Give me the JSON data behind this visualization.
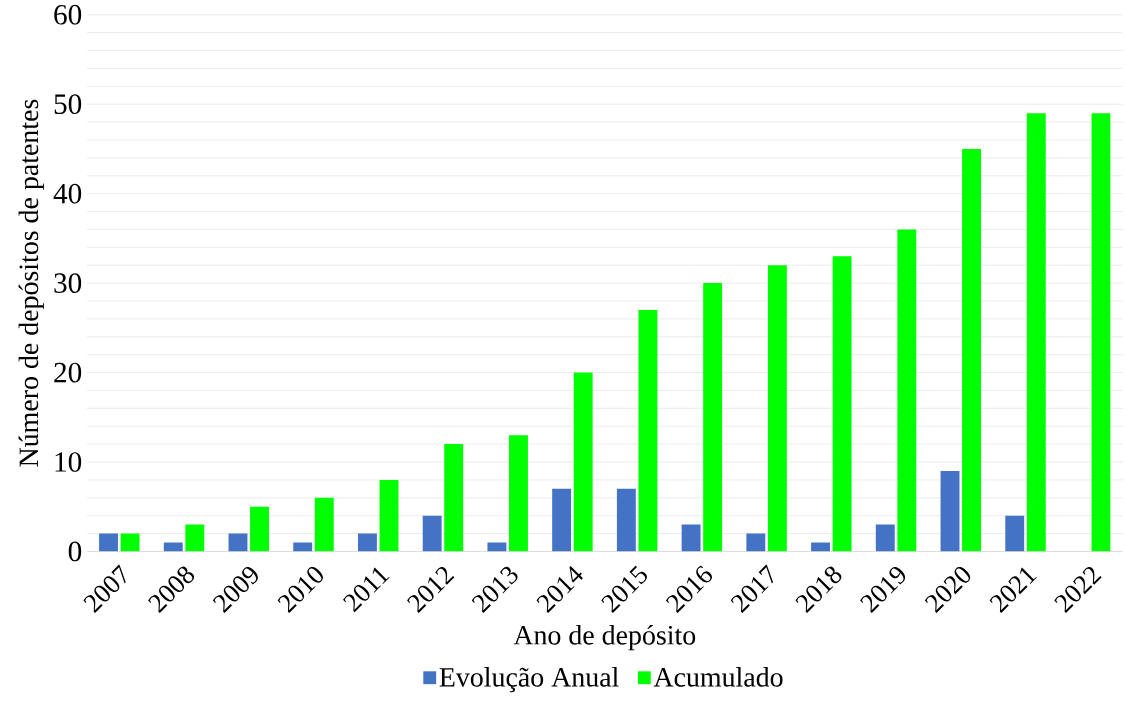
{
  "chart_data": {
    "type": "bar",
    "xlabel": "Ano de depósito",
    "ylabel": "Número de depósitos de patentes",
    "categories": [
      "2007",
      "2008",
      "2009",
      "2010",
      "2011",
      "2012",
      "2013",
      "2014",
      "2015",
      "2016",
      "2017",
      "2018",
      "2019",
      "2020",
      "2021",
      "2022"
    ],
    "series": [
      {
        "name": "Evolução Anual",
        "color": "#4472c4",
        "values": [
          2,
          1,
          2,
          1,
          2,
          4,
          1,
          7,
          7,
          3,
          2,
          1,
          3,
          9,
          4,
          0
        ]
      },
      {
        "name": "Acumulado",
        "color": "#00ff00",
        "values": [
          2,
          3,
          5,
          6,
          8,
          12,
          13,
          20,
          27,
          30,
          32,
          33,
          36,
          45,
          49,
          49
        ]
      }
    ],
    "ylim": [
      0,
      60
    ],
    "yticks": [
      0,
      {
        "value": 2,
        "label": null
      },
      {
        "value": 4,
        "label": null
      },
      {
        "value": 6,
        "label": null
      },
      {
        "value": 8,
        "label": null
      },
      10,
      {
        "value": 12,
        "label": null
      },
      {
        "value": 14,
        "label": null
      },
      {
        "value": 16,
        "label": null
      },
      {
        "value": 18,
        "label": null
      },
      20,
      {
        "value": 22,
        "label": null
      },
      {
        "value": 24,
        "label": null
      },
      {
        "value": 26,
        "label": null
      },
      {
        "value": 28,
        "label": null
      },
      30,
      {
        "value": 32,
        "label": null
      },
      {
        "value": 34,
        "label": null
      },
      {
        "value": 36,
        "label": null
      },
      {
        "value": 38,
        "label": null
      },
      40,
      {
        "value": 42,
        "label": null
      },
      {
        "value": 44,
        "label": null
      },
      {
        "value": 46,
        "label": null
      },
      {
        "value": 48,
        "label": null
      },
      50,
      {
        "value": 52,
        "label": null
      },
      {
        "value": 54,
        "label": null
      },
      {
        "value": 56,
        "label": null
      },
      {
        "value": 58,
        "label": null
      },
      60
    ],
    "grid": "y",
    "legend": "bottom"
  }
}
